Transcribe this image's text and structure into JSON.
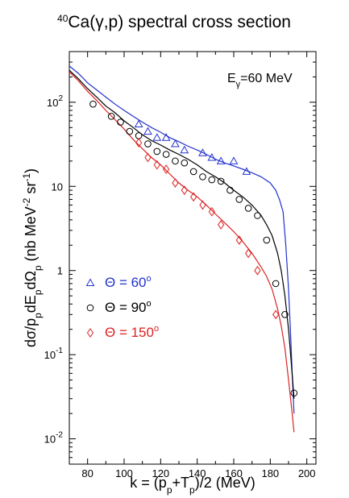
{
  "chart_data": {
    "type": "scatter",
    "title_parts": {
      "sup": "40",
      "main": "Ca(γ,p) spectral cross section"
    },
    "xlabel_parts": {
      "a": "k = (p",
      "sub1": "p",
      "b": "+T",
      "sub2": "p",
      "c": ")/2 (MeV)"
    },
    "ylabel_parts": {
      "a": "dσ/p",
      "s1": "p",
      "b": "dE",
      "s2": "p",
      "c": "dΩ",
      "s3": "p",
      "d": " (nb MeV",
      "e1": "-2",
      "e": " sr",
      "e2": "-1",
      "f": ")"
    },
    "annotation_parts": {
      "a": "E",
      "sub": "γ",
      "b": "=60 MeV"
    },
    "x_ticks": [
      "80",
      "100",
      "120",
      "140",
      "160",
      "180",
      "200"
    ],
    "y_ticks": [
      {
        "base": "10",
        "exp": "-2"
      },
      {
        "base": "10",
        "exp": "-1"
      },
      {
        "base": "1",
        "exp": ""
      },
      {
        "base": "10",
        "exp": ""
      },
      {
        "base": "10",
        "exp": "2"
      }
    ],
    "xlim": [
      70,
      205
    ],
    "ylim": [
      0.005,
      400
    ],
    "y_scale": "log",
    "legend_position": "left",
    "series": [
      {
        "name": "Θ = 60°",
        "label_parts": {
          "a": "Θ = 60",
          "sup": "o"
        },
        "color": "#2233cc",
        "marker": "triangle",
        "points": [
          [
            108,
            55
          ],
          [
            113,
            45
          ],
          [
            118,
            38
          ],
          [
            123,
            38
          ],
          [
            128,
            32
          ],
          [
            133,
            27
          ],
          [
            143,
            25
          ],
          [
            148,
            22
          ],
          [
            153,
            20
          ],
          [
            160,
            20
          ],
          [
            167,
            15
          ]
        ],
        "curve": [
          [
            70,
            270
          ],
          [
            75,
            220
          ],
          [
            80,
            170
          ],
          [
            85,
            140
          ],
          [
            90,
            115
          ],
          [
            95,
            95
          ],
          [
            100,
            80
          ],
          [
            105,
            68
          ],
          [
            110,
            58
          ],
          [
            115,
            50
          ],
          [
            120,
            44
          ],
          [
            125,
            38
          ],
          [
            130,
            34
          ],
          [
            135,
            30
          ],
          [
            140,
            27
          ],
          [
            145,
            24
          ],
          [
            150,
            21
          ],
          [
            155,
            19
          ],
          [
            160,
            17.5
          ],
          [
            165,
            16
          ],
          [
            170,
            14.5
          ],
          [
            175,
            13
          ],
          [
            180,
            11
          ],
          [
            183,
            9
          ],
          [
            185,
            7
          ],
          [
            187,
            5
          ],
          [
            188.5,
            2
          ],
          [
            190,
            0.6
          ],
          [
            191,
            0.2
          ],
          [
            192,
            0.06
          ],
          [
            193,
            0.02
          ]
        ]
      },
      {
        "name": "Θ = 90°",
        "label_parts": {
          "a": "Θ = 90",
          "sup": "o"
        },
        "color": "#000000",
        "marker": "circle",
        "points": [
          [
            83,
            95
          ],
          [
            93,
            68
          ],
          [
            98,
            58
          ],
          [
            103,
            45
          ],
          [
            108,
            40
          ],
          [
            113,
            32
          ],
          [
            118,
            26
          ],
          [
            123,
            24
          ],
          [
            128,
            20
          ],
          [
            133,
            19
          ],
          [
            138,
            15
          ],
          [
            143,
            13
          ],
          [
            148,
            12
          ],
          [
            153,
            11.5
          ],
          [
            158,
            9
          ],
          [
            163,
            7
          ],
          [
            168,
            5.5
          ],
          [
            173,
            4.5
          ],
          [
            178,
            2.3
          ],
          [
            183,
            0.7
          ],
          [
            188,
            0.3
          ],
          [
            193,
            0.035
          ]
        ],
        "curve": [
          [
            70,
            240
          ],
          [
            75,
            190
          ],
          [
            80,
            145
          ],
          [
            85,
            115
          ],
          [
            90,
            90
          ],
          [
            95,
            75
          ],
          [
            100,
            60
          ],
          [
            105,
            50
          ],
          [
            110,
            41
          ],
          [
            115,
            35
          ],
          [
            120,
            31
          ],
          [
            125,
            27
          ],
          [
            130,
            24
          ],
          [
            135,
            21
          ],
          [
            140,
            18
          ],
          [
            145,
            15
          ],
          [
            150,
            13
          ],
          [
            155,
            11
          ],
          [
            160,
            9
          ],
          [
            165,
            7.5
          ],
          [
            170,
            6
          ],
          [
            175,
            4.5
          ],
          [
            178,
            3.5
          ],
          [
            181,
            2.6
          ],
          [
            184,
            1.6
          ],
          [
            186,
            1.0
          ],
          [
            188,
            0.5
          ],
          [
            190,
            0.2
          ],
          [
            191.5,
            0.08
          ],
          [
            193,
            0.03
          ]
        ]
      },
      {
        "name": "Θ = 150°",
        "label_parts": {
          "a": "Θ = 150",
          "sup": "o"
        },
        "color": "#dd2222",
        "marker": "diamond",
        "points": [
          [
            108,
            33
          ],
          [
            113,
            22
          ],
          [
            118,
            18
          ],
          [
            123,
            16
          ],
          [
            128,
            11
          ],
          [
            133,
            9
          ],
          [
            138,
            7.5
          ],
          [
            143,
            6
          ],
          [
            148,
            5
          ],
          [
            153,
            3.5
          ],
          [
            163,
            2.3
          ],
          [
            168,
            1.6
          ],
          [
            173,
            1.0
          ],
          [
            183,
            0.3
          ]
        ],
        "curve": [
          [
            70,
            230
          ],
          [
            75,
            180
          ],
          [
            80,
            135
          ],
          [
            85,
            105
          ],
          [
            90,
            80
          ],
          [
            95,
            62
          ],
          [
            100,
            48
          ],
          [
            105,
            36
          ],
          [
            110,
            28
          ],
          [
            115,
            22
          ],
          [
            120,
            18
          ],
          [
            125,
            14
          ],
          [
            130,
            11
          ],
          [
            135,
            9
          ],
          [
            140,
            7.5
          ],
          [
            145,
            6
          ],
          [
            150,
            4.7
          ],
          [
            155,
            3.7
          ],
          [
            160,
            2.9
          ],
          [
            165,
            2.2
          ],
          [
            170,
            1.6
          ],
          [
            175,
            1.1
          ],
          [
            178,
            0.85
          ],
          [
            181,
            0.6
          ],
          [
            184,
            0.35
          ],
          [
            186,
            0.22
          ],
          [
            188,
            0.12
          ],
          [
            190,
            0.05
          ],
          [
            192,
            0.02
          ],
          [
            193,
            0.012
          ]
        ]
      }
    ]
  }
}
